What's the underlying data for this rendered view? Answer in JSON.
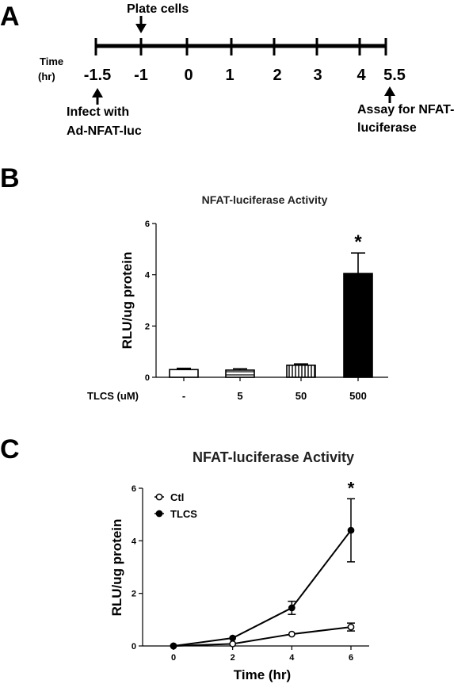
{
  "panel_a": {
    "letter": "A",
    "plate_label": "Plate cells",
    "time_label_1": "Time",
    "time_label_2": "(hr)",
    "ticks": [
      "-1.5",
      "-1",
      "0",
      "1",
      "2",
      "3",
      "4",
      "5.5"
    ],
    "infect_label_1": "Infect with",
    "infect_label_2": "Ad-NFAT-luc",
    "assay_label_1": "Assay for NFAT-",
    "assay_label_2": "luciferase"
  },
  "panel_b": {
    "letter": "B"
  },
  "panel_c": {
    "letter": "C"
  },
  "chart_data": [
    {
      "type": "bar",
      "title": "NFAT-luciferase Activity",
      "ylabel": "RLU/ug protein",
      "xlabel": "TLCS (uM)",
      "categories": [
        "-",
        "5",
        "50",
        "500"
      ],
      "values": [
        0.3,
        0.28,
        0.47,
        4.05
      ],
      "errors": [
        0.05,
        0.05,
        0.05,
        0.8
      ],
      "fills": [
        "open",
        "horizontal-hatch",
        "vertical-hatch",
        "solid"
      ],
      "ylim": [
        0,
        6
      ],
      "yticks": [
        "0",
        "2",
        "4",
        "6"
      ],
      "annotations": [
        "*"
      ],
      "grid": false
    },
    {
      "type": "line",
      "title": "NFAT-luciferase Activity",
      "xlabel": "Time (hr)",
      "ylabel": "RLU/ug protein",
      "x": [
        0,
        2,
        4,
        6
      ],
      "xticks": [
        "0",
        "2",
        "4",
        "6"
      ],
      "yticks": [
        "0",
        "2",
        "4",
        "6"
      ],
      "xlim": [
        0,
        6
      ],
      "ylim": [
        0,
        6
      ],
      "series": [
        {
          "name": "Ctl",
          "values": [
            0.0,
            0.08,
            0.45,
            0.72
          ],
          "errors": [
            0.02,
            0.03,
            0.05,
            0.15
          ],
          "marker": "open"
        },
        {
          "name": "TLCS",
          "values": [
            0.0,
            0.3,
            1.45,
            4.4
          ],
          "errors": [
            0.02,
            0.05,
            0.25,
            1.2
          ],
          "marker": "filled"
        }
      ],
      "legend": "top-left",
      "annotations": [
        "*"
      ],
      "grid": false
    }
  ]
}
